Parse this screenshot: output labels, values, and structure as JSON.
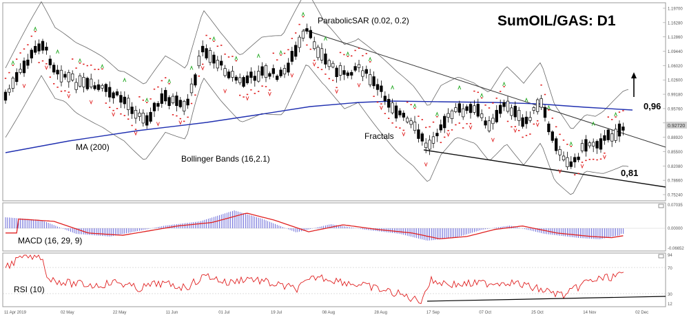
{
  "chart_data": [
    {
      "type": "candlestick",
      "title": "SumOIL/GAS: D1",
      "annotations": {
        "sar": "ParabolicSAR (0.02, 0.2)",
        "ma": "MA (200)",
        "bollinger": "Bollinger Bands (16,2.1)",
        "fractals": "Fractals",
        "level_upper": "0,96",
        "level_lower": "0,81"
      },
      "x_ticks": [
        "11 Apr 2019",
        "02 May",
        "22 May",
        "11 Jun",
        "01 Jul",
        "19 Jul",
        "08 Aug",
        "28 Aug",
        "17 Sep",
        "07 Oct",
        "25 Oct",
        "14 Nov",
        "02 Dec"
      ],
      "y_ticks": [
        "1.19700",
        "1.16280",
        "1.12860",
        "1.09440",
        "1.06020",
        "1.02600",
        "0.99180",
        "0.95760",
        "0.92340",
        "0.88920",
        "0.85500",
        "0.82080",
        "0.78660",
        "0.75240"
      ],
      "ylim": [
        0.7395,
        1.204
      ],
      "last_price": "0.92720",
      "colors": {
        "up": "#ffffff",
        "down": "#000000",
        "ma": "#1f2fb0",
        "sar": "#e02020",
        "fractal_up": "#1aa51a",
        "fractal_down": "#e02020",
        "bands": "#555555"
      }
    },
    {
      "type": "bar",
      "name": "MACD (16, 29, 9)",
      "y_ticks": [
        "0.07035",
        "0.00000",
        "-0.06652"
      ],
      "colors": {
        "histogram": "#4a4ad0",
        "signal": "#e02020"
      }
    },
    {
      "type": "line",
      "name": "RSI (10)",
      "y_ticks": [
        "94",
        "70",
        "30",
        "12"
      ],
      "colors": {
        "line": "#e02020"
      }
    }
  ]
}
